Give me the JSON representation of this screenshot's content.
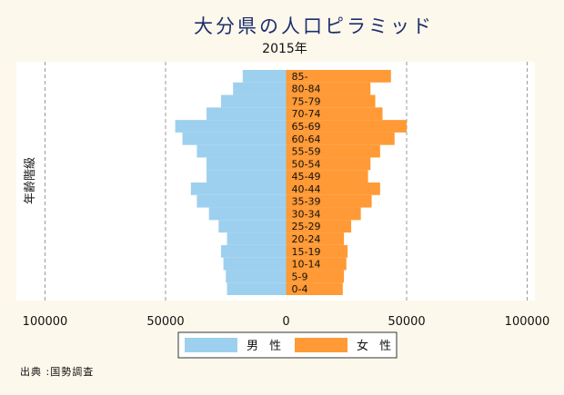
{
  "chart_data": {
    "type": "bar",
    "orientation": "horizontal-population-pyramid",
    "title": "大分県の人口ピラミッド",
    "subtitle": "2015年",
    "ylabel": "年齢階級",
    "source": "出典 :国勢調査",
    "xlim": [
      -100000,
      100000
    ],
    "xticks": [
      -100000,
      -50000,
      0,
      50000,
      100000
    ],
    "xtick_labels": [
      "100000",
      "50000",
      "0",
      "50000",
      "100000"
    ],
    "grid": "vertical-dashed",
    "legend_position": "bottom",
    "categories": [
      "0-4",
      "5-9",
      "10-14",
      "15-19",
      "20-24",
      "25-29",
      "30-34",
      "35-39",
      "40-44",
      "45-49",
      "50-54",
      "55-59",
      "60-64",
      "65-69",
      "70-74",
      "75-79",
      "80-84",
      "85-"
    ],
    "series": [
      {
        "name": "男 性",
        "color": "#9dd0ee",
        "side": "left",
        "values": [
          24500,
          25000,
          26000,
          27000,
          24500,
          28000,
          32000,
          37000,
          39500,
          33000,
          33000,
          37000,
          43000,
          46000,
          33000,
          27000,
          22000,
          18000
        ]
      },
      {
        "name": "女 性",
        "color": "#ff9a36",
        "side": "right",
        "values": [
          23500,
          24000,
          25000,
          25500,
          24000,
          27000,
          31000,
          35500,
          39000,
          34000,
          35000,
          39000,
          45000,
          50000,
          40000,
          37000,
          35000,
          43500
        ]
      }
    ]
  }
}
